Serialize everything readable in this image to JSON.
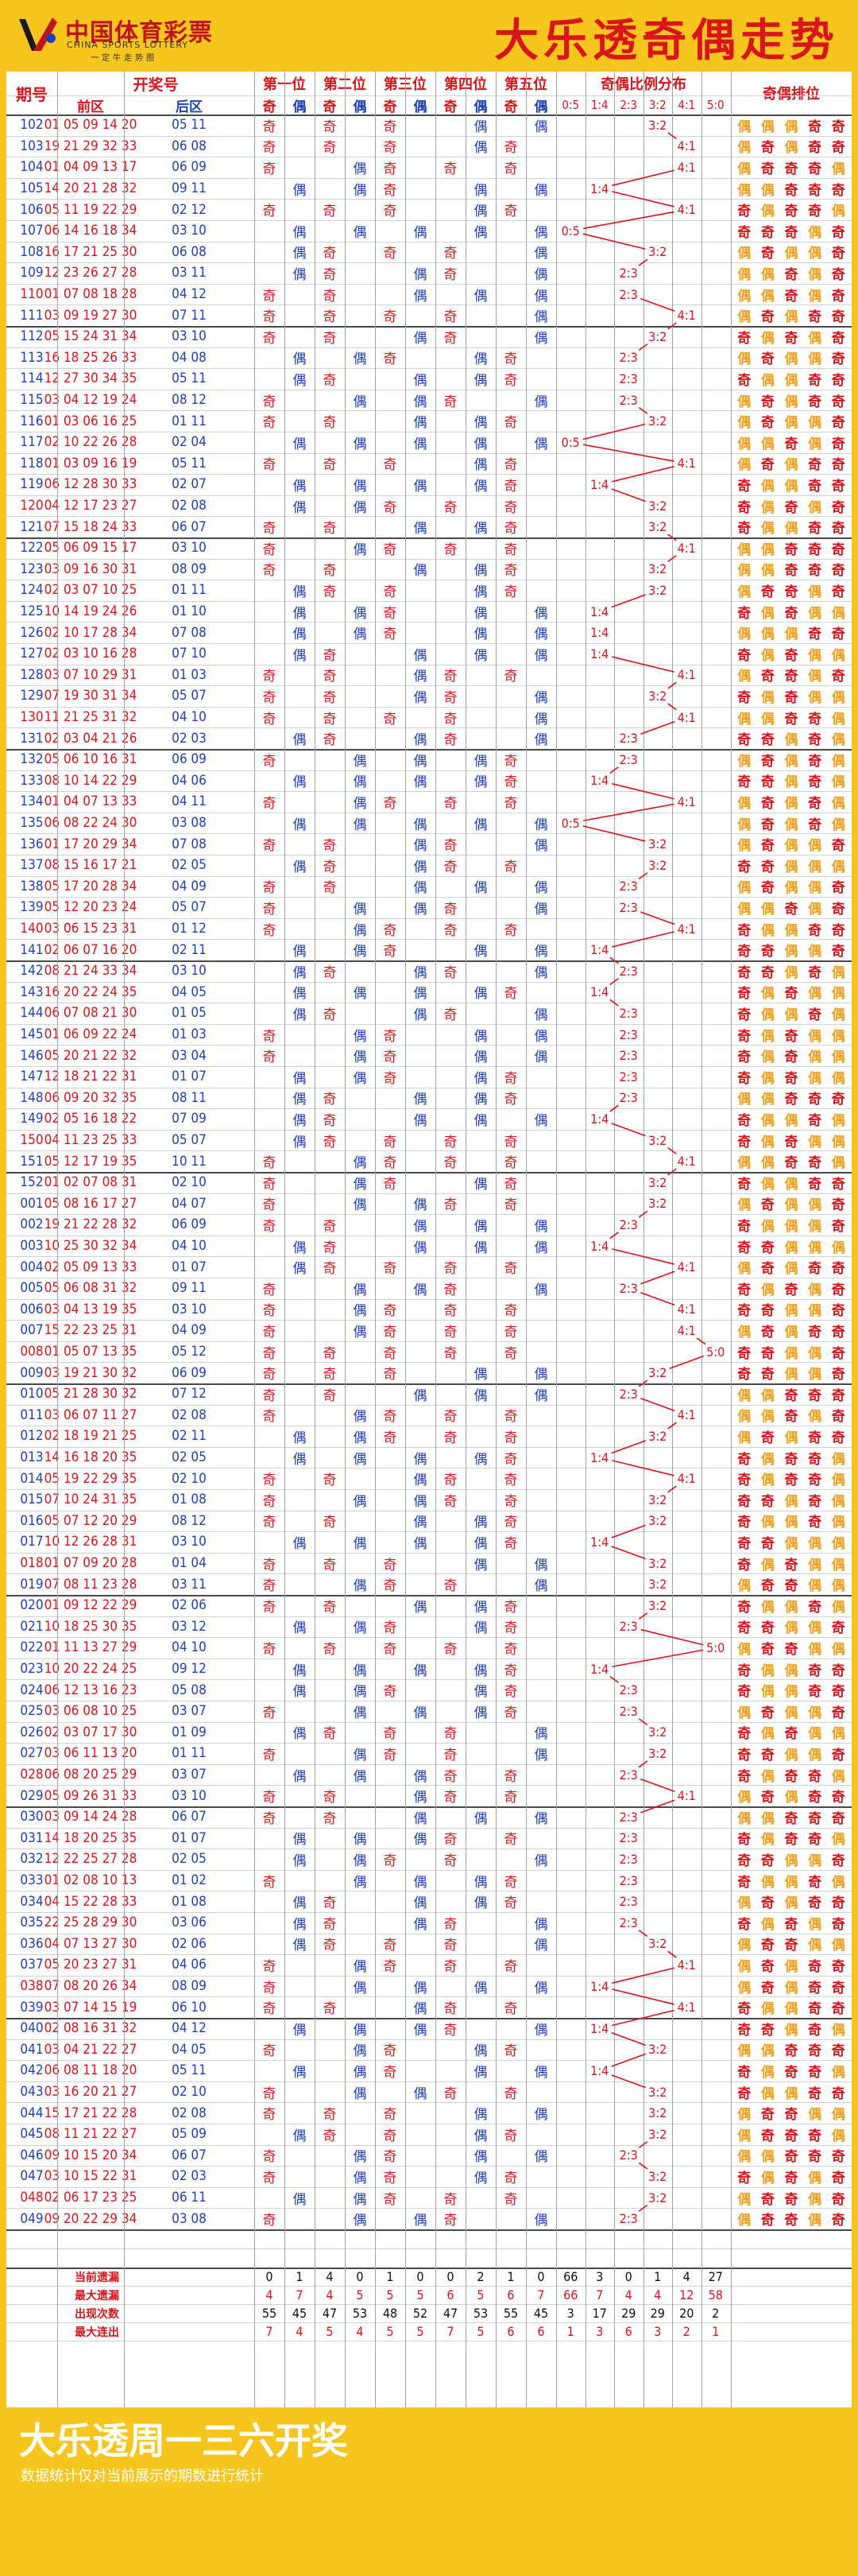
{
  "header": {
    "logo_cn": "中国体育彩票",
    "logo_en": "CHINA SPORTS LOTTERY",
    "logo_sub": "一定牛走势图",
    "title": "大乐透奇偶走势"
  },
  "columns": {
    "issue": "期号",
    "draw": "开奖号",
    "front": "前区",
    "back": "后区",
    "pos": [
      "第一位",
      "第二位",
      "第三位",
      "第四位",
      "第五位"
    ],
    "ratio": "奇偶比例分布",
    "arr": "奇偶排位",
    "odd": "奇",
    "even": "偶",
    "ratios": [
      "0:5",
      "1:4",
      "2:3",
      "3:2",
      "4:1",
      "5:0"
    ]
  },
  "colors": {
    "odd": "#d9141b",
    "even": "#1f3fb8",
    "arr_odd": "#d9141b",
    "arr_even": "#f0a020",
    "line_red": "#d9141b",
    "issue_blue": "#1f3fb8",
    "yellow": "#f6c61f"
  },
  "chart_data": {
    "type": "table",
    "rows": [
      {
        "i": "102",
        "f": "01 05 09 14 20",
        "b": "05 11",
        "r": "3:2",
        "a": "偶偶偶奇奇"
      },
      {
        "i": "103",
        "f": "19 21 29 32 33",
        "b": "06 08",
        "r": "4:1",
        "a": "偶奇偶奇奇"
      },
      {
        "i": "104",
        "f": "01 04 09 13 17",
        "b": "06 09",
        "r": "4:1",
        "a": "偶奇奇奇偶"
      },
      {
        "i": "105",
        "f": "14 20 21 28 32",
        "b": "09 11",
        "r": "1:4",
        "a": "偶偶奇奇奇"
      },
      {
        "i": "106",
        "f": "05 11 19 22 29",
        "b": "02 12",
        "r": "4:1",
        "a": "奇偶奇奇偶"
      },
      {
        "i": "107",
        "f": "06 14 16 18 34",
        "b": "03 10",
        "r": "0:5",
        "a": "奇奇奇偶奇"
      },
      {
        "i": "108",
        "f": "16 17 21 25 30",
        "b": "06 08",
        "r": "3:2",
        "a": "偶奇偶偶奇"
      },
      {
        "i": "109",
        "f": "12 23 26 27 28",
        "b": "03 11",
        "r": "2:3",
        "a": "偶偶奇偶奇"
      },
      {
        "i": "110",
        "f": "01 07 08 18 28",
        "b": "04 12",
        "r": "2:3",
        "a": "偶偶奇偶奇"
      },
      {
        "i": "111",
        "f": "03 09 19 27 30",
        "b": "07 11",
        "r": "4:1",
        "a": "偶奇偶奇奇"
      },
      {
        "i": "112",
        "f": "05 15 24 31 34",
        "b": "03 10",
        "r": "3:2",
        "a": "奇偶奇偶奇"
      },
      {
        "i": "113",
        "f": "16 18 25 26 33",
        "b": "04 08",
        "r": "2:3",
        "a": "偶奇偶偶奇"
      },
      {
        "i": "114",
        "f": "12 27 30 34 35",
        "b": "05 11",
        "r": "2:3",
        "a": "奇偶偶奇奇"
      },
      {
        "i": "115",
        "f": "03 04 12 19 24",
        "b": "08 12",
        "r": "2:3",
        "a": "偶奇偶奇奇"
      },
      {
        "i": "116",
        "f": "01 03 06 16 25",
        "b": "01 11",
        "r": "3:2",
        "a": "偶奇偶偶奇"
      },
      {
        "i": "117",
        "f": "02 10 22 26 28",
        "b": "02 04",
        "r": "0:5",
        "a": "偶偶奇偶奇"
      },
      {
        "i": "118",
        "f": "01 03 09 16 19",
        "b": "05 11",
        "r": "4:1",
        "a": "偶奇偶奇奇"
      },
      {
        "i": "119",
        "f": "06 12 28 30 33",
        "b": "02 07",
        "r": "1:4",
        "a": "奇偶偶奇奇"
      },
      {
        "i": "120",
        "f": "04 12 17 23 27",
        "b": "02 08",
        "r": "3:2",
        "a": "奇偶奇偶奇"
      },
      {
        "i": "121",
        "f": "07 15 18 24 33",
        "b": "06 07",
        "r": "3:2",
        "a": "奇偶偶奇奇"
      },
      {
        "i": "122",
        "f": "05 06 09 15 17",
        "b": "03 10",
        "r": "4:1",
        "a": "偶偶奇奇奇"
      },
      {
        "i": "123",
        "f": "03 09 16 30 31",
        "b": "08 09",
        "r": "3:2",
        "a": "偶偶奇奇奇"
      },
      {
        "i": "124",
        "f": "02 03 07 10 25",
        "b": "01 11",
        "r": "3:2",
        "a": "偶奇奇偶奇"
      },
      {
        "i": "125",
        "f": "10 14 19 24 26",
        "b": "01 10",
        "r": "1:4",
        "a": "奇偶奇偶偶"
      },
      {
        "i": "126",
        "f": "02 10 17 28 34",
        "b": "07 08",
        "r": "1:4",
        "a": "偶偶偶奇奇"
      },
      {
        "i": "127",
        "f": "02 03 10 16 28",
        "b": "07 10",
        "r": "1:4",
        "a": "奇偶奇偶偶"
      },
      {
        "i": "128",
        "f": "03 07 10 29 31",
        "b": "01 03",
        "r": "4:1",
        "a": "偶奇奇偶奇"
      },
      {
        "i": "129",
        "f": "07 19 30 31 34",
        "b": "05 07",
        "r": "3:2",
        "a": "奇偶奇偶偶"
      },
      {
        "i": "130",
        "f": "11 21 25 31 32",
        "b": "04 10",
        "r": "4:1",
        "a": "偶偶奇奇偶"
      },
      {
        "i": "131",
        "f": "02 03 04 21 26",
        "b": "02 03",
        "r": "2:3",
        "a": "奇奇偶奇偶"
      },
      {
        "i": "132",
        "f": "05 06 10 16 31",
        "b": "06 09",
        "r": "2:3",
        "a": "偶奇偶奇偶"
      },
      {
        "i": "133",
        "f": "08 10 14 22 29",
        "b": "04 06",
        "r": "1:4",
        "a": "奇奇偶奇偶"
      },
      {
        "i": "134",
        "f": "01 04 07 13 33",
        "b": "04 11",
        "r": "4:1",
        "a": "偶奇偶奇偶"
      },
      {
        "i": "135",
        "f": "06 08 22 24 30",
        "b": "03 08",
        "r": "0:5",
        "a": "偶奇偶奇偶"
      },
      {
        "i": "136",
        "f": "01 17 20 29 34",
        "b": "07 08",
        "r": "3:2",
        "a": "偶奇偶偶奇"
      },
      {
        "i": "137",
        "f": "08 15 16 17 21",
        "b": "02 05",
        "r": "3:2",
        "a": "奇奇偶偶偶"
      },
      {
        "i": "138",
        "f": "05 17 20 28 34",
        "b": "04 09",
        "r": "2:3",
        "a": "偶奇偶偶奇"
      },
      {
        "i": "139",
        "f": "05 12 20 23 24",
        "b": "05 07",
        "r": "2:3",
        "a": "偶偶奇偶奇"
      },
      {
        "i": "140",
        "f": "03 06 15 23 31",
        "b": "01 12",
        "r": "4:1",
        "a": "奇偶偶奇奇"
      },
      {
        "i": "141",
        "f": "02 06 07 16 20",
        "b": "02 11",
        "r": "1:4",
        "a": "奇奇偶偶奇"
      },
      {
        "i": "142",
        "f": "08 21 24 33 34",
        "b": "03 10",
        "r": "2:3",
        "a": "奇奇偶奇偶"
      },
      {
        "i": "143",
        "f": "16 20 22 24 35",
        "b": "04 05",
        "r": "1:4",
        "a": "奇偶奇偶偶"
      },
      {
        "i": "144",
        "f": "06 07 08 21 30",
        "b": "01 05",
        "r": "2:3",
        "a": "奇偶偶奇偶"
      },
      {
        "i": "145",
        "f": "01 06 09 22 24",
        "b": "01 03",
        "r": "2:3",
        "a": "奇偶奇偶偶"
      },
      {
        "i": "146",
        "f": "05 20 21 22 32",
        "b": "03 04",
        "r": "2:3",
        "a": "奇偶奇偶偶"
      },
      {
        "i": "147",
        "f": "12 18 21 22 31",
        "b": "01 07",
        "r": "2:3",
        "a": "奇偶奇偶偶"
      },
      {
        "i": "148",
        "f": "06 09 20 32 35",
        "b": "08 11",
        "r": "2:3",
        "a": "偶偶奇奇奇"
      },
      {
        "i": "149",
        "f": "02 05 16 18 22",
        "b": "07 09",
        "r": "1:4",
        "a": "奇偶偶奇偶"
      },
      {
        "i": "150",
        "f": "04 11 23 25 33",
        "b": "05 07",
        "r": "3:2",
        "a": "奇偶奇偶偶"
      },
      {
        "i": "151",
        "f": "05 12 17 19 35",
        "b": "10 11",
        "r": "4:1",
        "a": "偶偶奇奇偶"
      },
      {
        "i": "152",
        "f": "01 02 07 08 31",
        "b": "02 10",
        "r": "3:2",
        "a": "奇偶偶奇奇"
      },
      {
        "i": "001",
        "f": "05 08 16 17 27",
        "b": "04 07",
        "r": "3:2",
        "a": "偶奇偶偶奇"
      },
      {
        "i": "002",
        "f": "19 21 22 28 32",
        "b": "06 09",
        "r": "2:3",
        "a": "奇偶偶偶奇"
      },
      {
        "i": "003",
        "f": "10 25 30 32 34",
        "b": "04 10",
        "r": "1:4",
        "a": "奇奇偶偶偶"
      },
      {
        "i": "004",
        "f": "02 05 09 13 33",
        "b": "01 07",
        "r": "4:1",
        "a": "偶奇偶奇奇"
      },
      {
        "i": "005",
        "f": "05 06 08 31 32",
        "b": "09 11",
        "r": "2:3",
        "a": "奇偶奇偶奇"
      },
      {
        "i": "006",
        "f": "03 04 13 19 35",
        "b": "03 10",
        "r": "4:1",
        "a": "奇奇偶偶奇"
      },
      {
        "i": "007",
        "f": "15 22 23 25 31",
        "b": "04 09",
        "r": "4:1",
        "a": "偶奇偶奇奇"
      },
      {
        "i": "008",
        "f": "01 05 07 13 35",
        "b": "05 12",
        "r": "5:0",
        "a": "奇奇偶偶奇"
      },
      {
        "i": "009",
        "f": "03 19 21 30 32",
        "b": "06 09",
        "r": "3:2",
        "a": "奇奇偶偶奇"
      },
      {
        "i": "010",
        "f": "05 21 28 30 32",
        "b": "07 12",
        "r": "2:3",
        "a": "偶偶奇奇奇"
      },
      {
        "i": "011",
        "f": "03 06 07 11 27",
        "b": "02 08",
        "r": "4:1",
        "a": "偶偶奇偶奇"
      },
      {
        "i": "012",
        "f": "02 18 19 21 25",
        "b": "02 11",
        "r": "3:2",
        "a": "偶奇偶奇奇"
      },
      {
        "i": "013",
        "f": "14 16 18 20 35",
        "b": "02 05",
        "r": "1:4",
        "a": "奇偶奇奇偶"
      },
      {
        "i": "014",
        "f": "05 19 22 29 35",
        "b": "02 10",
        "r": "4:1",
        "a": "奇偶奇奇偶"
      },
      {
        "i": "015",
        "f": "07 10 24 31 35",
        "b": "01 08",
        "r": "3:2",
        "a": "奇奇偶奇偶"
      },
      {
        "i": "016",
        "f": "05 07 12 20 29",
        "b": "08 12",
        "r": "3:2",
        "a": "奇偶偶奇偶"
      },
      {
        "i": "017",
        "f": "10 12 26 28 31",
        "b": "03 10",
        "r": "1:4",
        "a": "奇奇偶偶偶"
      },
      {
        "i": "018",
        "f": "01 07 09 20 28",
        "b": "01 04",
        "r": "3:2",
        "a": "奇偶奇偶偶"
      },
      {
        "i": "019",
        "f": "07 08 11 23 28",
        "b": "03 11",
        "r": "3:2",
        "a": "偶奇奇偶偶"
      },
      {
        "i": "020",
        "f": "01 09 12 22 29",
        "b": "02 06",
        "r": "3:2",
        "a": "奇偶偶奇偶"
      },
      {
        "i": "021",
        "f": "10 18 25 30 35",
        "b": "03 12",
        "r": "2:3",
        "a": "奇奇偶偶奇"
      },
      {
        "i": "022",
        "f": "01 11 13 27 29",
        "b": "04 10",
        "r": "5:0",
        "a": "偶奇奇偶偶"
      },
      {
        "i": "023",
        "f": "10 20 22 24 25",
        "b": "09 12",
        "r": "1:4",
        "a": "奇偶偶奇奇"
      },
      {
        "i": "024",
        "f": "06 12 13 16 23",
        "b": "05 08",
        "r": "2:3",
        "a": "奇偶偶奇奇"
      },
      {
        "i": "025",
        "f": "03 06 08 10 25",
        "b": "03 07",
        "r": "2:3",
        "a": "偶奇偶偶奇"
      },
      {
        "i": "026",
        "f": "02 03 07 17 30",
        "b": "01 09",
        "r": "3:2",
        "a": "奇偶奇偶偶"
      },
      {
        "i": "027",
        "f": "03 06 11 13 20",
        "b": "01 11",
        "r": "3:2",
        "a": "奇奇偶偶奇"
      },
      {
        "i": "028",
        "f": "06 08 20 25 29",
        "b": "03 07",
        "r": "2:3",
        "a": "奇偶奇奇偶"
      },
      {
        "i": "029",
        "f": "05 09 26 31 33",
        "b": "03 10",
        "r": "4:1",
        "a": "偶奇偶奇奇"
      },
      {
        "i": "030",
        "f": "03 09 14 24 28",
        "b": "06 07",
        "r": "2:3",
        "a": "偶偶奇奇奇"
      },
      {
        "i": "031",
        "f": "14 18 20 25 35",
        "b": "01 07",
        "r": "2:3",
        "a": "奇偶奇奇偶"
      },
      {
        "i": "032",
        "f": "12 22 25 27 28",
        "b": "02 05",
        "r": "2:3",
        "a": "奇奇偶偶奇"
      },
      {
        "i": "033",
        "f": "01 02 08 10 13",
        "b": "01 02",
        "r": "2:3",
        "a": "奇偶偶奇偶"
      },
      {
        "i": "034",
        "f": "04 15 22 28 33",
        "b": "01 08",
        "r": "2:3",
        "a": "偶奇偶奇奇"
      },
      {
        "i": "035",
        "f": "22 25 28 29 30",
        "b": "03 06",
        "r": "2:3",
        "a": "奇偶奇偶奇"
      },
      {
        "i": "036",
        "f": "04 07 13 27 30",
        "b": "02 06",
        "r": "3:2",
        "a": "偶奇奇偶偶"
      },
      {
        "i": "037",
        "f": "05 20 23 27 31",
        "b": "04 06",
        "r": "4:1",
        "a": "偶奇偶奇奇"
      },
      {
        "i": "038",
        "f": "07 08 20 26 34",
        "b": "08 09",
        "r": "1:4",
        "a": "偶奇偶奇奇"
      },
      {
        "i": "039",
        "f": "03 07 14 15 19",
        "b": "06 10",
        "r": "4:1",
        "a": "奇偶偶奇奇"
      },
      {
        "i": "040",
        "f": "02 08 16 31 32",
        "b": "04 12",
        "r": "1:4",
        "a": "奇奇偶奇偶"
      },
      {
        "i": "041",
        "f": "03 04 21 22 27",
        "b": "04 05",
        "r": "3:2",
        "a": "偶偶奇奇奇"
      },
      {
        "i": "042",
        "f": "06 08 11 18 20",
        "b": "05 11",
        "r": "1:4",
        "a": "奇偶奇奇偶"
      },
      {
        "i": "043",
        "f": "03 16 20 21 27",
        "b": "02 10",
        "r": "3:2",
        "a": "奇偶偶奇奇"
      },
      {
        "i": "044",
        "f": "15 17 21 22 28",
        "b": "02 08",
        "r": "3:2",
        "a": "偶奇奇偶偶"
      },
      {
        "i": "045",
        "f": "08 11 21 22 27",
        "b": "05 09",
        "r": "3:2",
        "a": "偶奇奇奇偶"
      },
      {
        "i": "046",
        "f": "09 10 15 20 34",
        "b": "06 07",
        "r": "2:3",
        "a": "偶偶奇奇奇"
      },
      {
        "i": "047",
        "f": "03 10 15 22 31",
        "b": "02 03",
        "r": "3:2",
        "a": "奇偶奇偶奇"
      },
      {
        "i": "048",
        "f": "02 06 17 23 25",
        "b": "06 11",
        "r": "3:2",
        "a": "偶奇奇偶奇"
      },
      {
        "i": "049",
        "f": "09 20 22 29 34",
        "b": "03 08",
        "r": "2:3",
        "a": "偶奇奇偶奇"
      }
    ],
    "stats": [
      {
        "label": "当前遗漏",
        "values": [
          "0",
          "1",
          "4",
          "0",
          "1",
          "0",
          "0",
          "2",
          "1",
          "0",
          "66",
          "3",
          "0",
          "1",
          "4",
          "27"
        ]
      },
      {
        "label": "最大遗漏",
        "values": [
          "4",
          "7",
          "4",
          "5",
          "5",
          "5",
          "6",
          "5",
          "6",
          "7",
          "66",
          "7",
          "4",
          "4",
          "12",
          "58"
        ]
      },
      {
        "label": "出现次数",
        "values": [
          "55",
          "45",
          "47",
          "53",
          "48",
          "52",
          "47",
          "53",
          "55",
          "45",
          "3",
          "17",
          "29",
          "29",
          "20",
          "2"
        ]
      },
      {
        "label": "最大连出",
        "values": [
          "7",
          "4",
          "5",
          "4",
          "5",
          "5",
          "7",
          "5",
          "6",
          "6",
          "1",
          "3",
          "6",
          "3",
          "2",
          "1"
        ]
      }
    ]
  },
  "footer": {
    "title": "大乐透周一三六开奖",
    "note": "数据统计仅对当前展示的期数进行统计"
  }
}
